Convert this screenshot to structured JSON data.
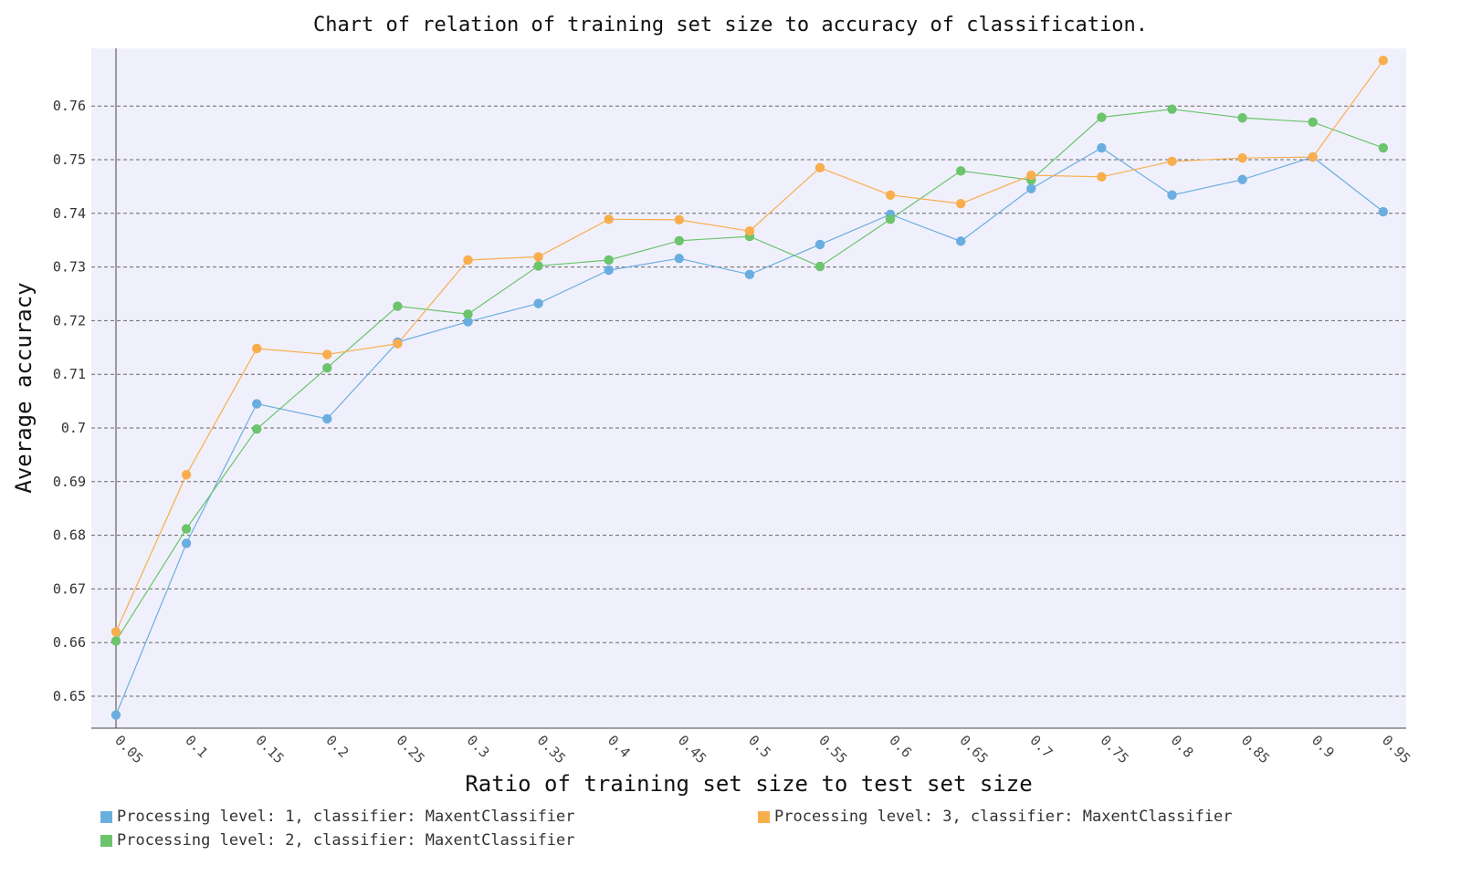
{
  "chart_data": {
    "type": "line",
    "title": "Chart of relation of training set size to accuracy of classification.",
    "xlabel": "Ratio of training set size to test set size",
    "ylabel": "Average accuracy",
    "categories": [
      "0.05",
      "0.1",
      "0.15",
      "0.2",
      "0.25",
      "0.3",
      "0.35",
      "0.4",
      "0.45",
      "0.5",
      "0.55",
      "0.6",
      "0.65",
      "0.7",
      "0.75",
      "0.8",
      "0.85",
      "0.9",
      "0.95"
    ],
    "yticks": [
      "0.65",
      "0.66",
      "0.67",
      "0.68",
      "0.69",
      "0.7",
      "0.71",
      "0.72",
      "0.73",
      "0.74",
      "0.75",
      "0.76"
    ],
    "ylim": [
      0.644,
      0.771
    ],
    "grid": "horizontal dashed",
    "legend_position": "bottom",
    "plot_background": "#f0f0fc",
    "series": [
      {
        "name": "Processing level: 1, classifier: MaxentClassifier",
        "color": "#6aaee0",
        "values": [
          0.6465,
          0.6785,
          0.7045,
          0.7017,
          0.716,
          0.7198,
          0.7232,
          0.7294,
          0.7316,
          0.7286,
          0.7342,
          0.7398,
          0.7348,
          0.7446,
          0.7522,
          0.7434,
          0.7463,
          0.7505,
          0.7403
        ]
      },
      {
        "name": "Processing level: 2, classifier: MaxentClassifier",
        "color": "#6cc46c",
        "values": [
          0.6603,
          0.6812,
          0.6998,
          0.7112,
          0.7227,
          0.7212,
          0.7302,
          0.7313,
          0.7349,
          0.7357,
          0.7301,
          0.7389,
          0.7479,
          0.7462,
          0.7579,
          0.7594,
          0.7578,
          0.757,
          0.7522
        ]
      },
      {
        "name": "Processing level: 3, classifier: MaxentClassifier",
        "color": "#f8ae4c",
        "values": [
          0.662,
          0.6913,
          0.7148,
          0.7137,
          0.7157,
          0.7313,
          0.7319,
          0.7389,
          0.7388,
          0.7367,
          0.7485,
          0.7434,
          0.7418,
          0.7471,
          0.7468,
          0.7497,
          0.7503,
          0.7505,
          0.7685
        ]
      }
    ]
  },
  "legend": {
    "items": [
      {
        "label": "Processing level: 1, classifier: MaxentClassifier",
        "color": "#6aaee0"
      },
      {
        "label": "Processing level: 3, classifier: MaxentClassifier",
        "color": "#f8ae4c"
      },
      {
        "label": "Processing level: 2, classifier: MaxentClassifier",
        "color": "#6cc46c"
      }
    ]
  }
}
